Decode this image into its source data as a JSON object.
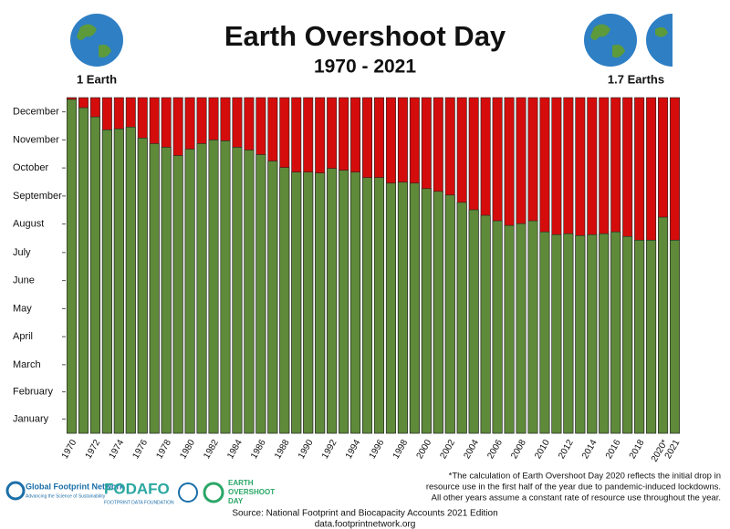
{
  "chart_data": {
    "type": "bar",
    "title": "Earth Overshoot Day",
    "subtitle": "1970 - 2021",
    "left_label": "1 Earth",
    "right_label": "1.7 Earths",
    "categories": [
      "1970",
      null,
      "1972",
      null,
      "1974",
      null,
      "1976",
      null,
      "1978",
      null,
      "1980",
      null,
      "1982",
      null,
      "1984",
      null,
      "1986",
      null,
      "1988",
      null,
      "1990",
      null,
      "1992",
      null,
      "1994",
      null,
      "1996",
      null,
      "1998",
      null,
      "2000",
      null,
      "2002",
      null,
      "2004",
      null,
      "2006",
      null,
      "2008",
      null,
      "2010",
      null,
      "2012",
      null,
      "2014",
      null,
      "2016",
      null,
      "2018",
      null,
      "2020*",
      "2021"
    ],
    "values": [
      363,
      354,
      344,
      330,
      331,
      333,
      321,
      315,
      311,
      302,
      309,
      315,
      319,
      318,
      311,
      308,
      303,
      296,
      289,
      284,
      284,
      283,
      288,
      286,
      284,
      278,
      278,
      272,
      273,
      272,
      266,
      263,
      259,
      251,
      243,
      237,
      231,
      226,
      228,
      231,
      219,
      216,
      217,
      215,
      216,
      217,
      219,
      214,
      210,
      210,
      235,
      210
    ],
    "color": "#5e8a3a",
    "background_color": "#d40c0c",
    "ylim": [
      0,
      365
    ],
    "yticks": [
      {
        "value": 15.5,
        "label": "January"
      },
      {
        "value": 45,
        "label": "February"
      },
      {
        "value": 74.5,
        "label": "March"
      },
      {
        "value": 105,
        "label": "April"
      },
      {
        "value": 135.5,
        "label": "May"
      },
      {
        "value": 166,
        "label": "June"
      },
      {
        "value": 196.5,
        "label": "July"
      },
      {
        "value": 227.5,
        "label": "August"
      },
      {
        "value": 258,
        "label": "September"
      },
      {
        "value": 288.5,
        "label": "October"
      },
      {
        "value": 319,
        "label": "November"
      },
      {
        "value": 349.5,
        "label": "December"
      }
    ],
    "footnote": [
      "*The calculation of Earth Overshoot Day 2020 reflects the initial drop in",
      "resource use in the first half of the year due to pandemic-induced lockdowns.",
      "All other years assume a constant rate of resource use throughout the year."
    ],
    "source": "Source: National Footprint and Biocapacity Accounts 2021 Edition",
    "url": "data.footprintnetwork.org",
    "logos": [
      "Global Footprint Network",
      "Advancing the Science of Sustainability",
      "FODAFO",
      "FOOTPRINT DATA FOUNDATION",
      "EARTH",
      "OVERSHOOT",
      "DAY"
    ]
  }
}
